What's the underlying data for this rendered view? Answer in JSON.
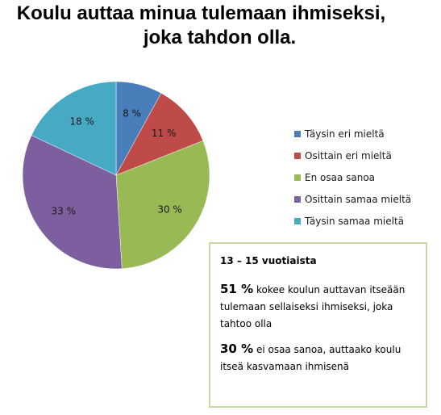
{
  "chart_data": {
    "type": "pie",
    "title_line1": "Koulu auttaa minua tulemaan ihmiseksi,",
    "title_line2": "joka tahdon olla.",
    "categories": [
      "Täysin eri mieltä",
      "Osittain eri mieltä",
      "En osaa sanoa",
      "Osittain samaa mieltä",
      "Täysin samaa mieltä"
    ],
    "values": [
      8,
      11,
      30,
      33,
      18
    ],
    "data_labels": [
      "8 %",
      "11 %",
      "30 %",
      "33 %",
      "18 %"
    ],
    "colors": [
      "#4a7ebb",
      "#be4b48",
      "#98b954",
      "#7d5fa0",
      "#46aac5"
    ],
    "legend_position": "right"
  },
  "info_box": {
    "heading": "13 – 15 vuotiaista",
    "stats": [
      {
        "percent": "51 %",
        "text": " kokee koulun auttavan itseään tulemaan sellaiseksi ihmiseksi, joka tahtoo olla"
      },
      {
        "percent": "30 %",
        "text": " ei osaa sanoa, auttaako koulu itseä kasvamaan ihmisenä"
      }
    ]
  }
}
